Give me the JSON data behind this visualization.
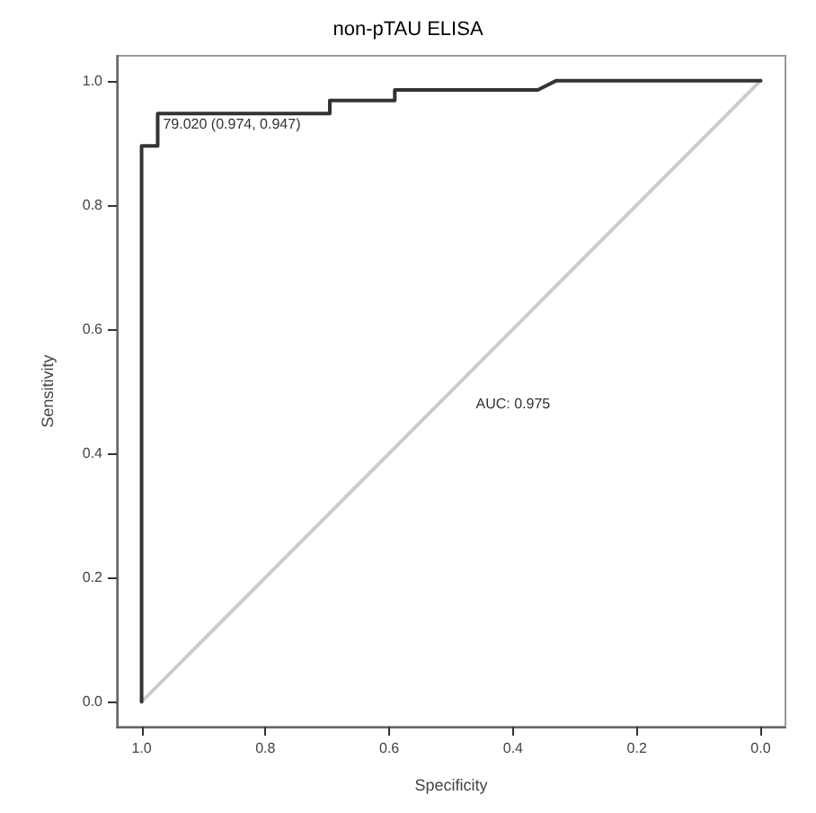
{
  "chart_data": {
    "type": "line",
    "title": "non-pTAU ELISA",
    "xlabel": "Specificity",
    "ylabel": "Sensitivity",
    "xlim": [
      1.04,
      -0.04
    ],
    "ylim": [
      -0.04,
      1.04
    ],
    "xticks": [
      {
        "value": 1,
        "label": "1.0"
      },
      0.8,
      0.6,
      0.4,
      0.2,
      {
        "value": 0,
        "label": "0.0"
      }
    ],
    "yticks": [
      {
        "value": 0,
        "label": "0.0"
      },
      0.2,
      0.4,
      0.6,
      0.8,
      {
        "value": 1,
        "label": "1.0"
      }
    ],
    "grid": false,
    "marker": "none",
    "line_style": "solid",
    "series": [
      {
        "color": "#cccccc",
        "x": [
          1,
          0
        ],
        "values": [
          0,
          1
        ]
      },
      {
        "color": "#333333",
        "x": [
          1,
          1,
          0.974,
          0.974,
          0.696,
          0.696,
          0.591,
          0.591,
          0.36,
          0.33,
          0
        ],
        "values": [
          0,
          0.895,
          0.895,
          0.947,
          0.947,
          0.968,
          0.968,
          0.985,
          0.985,
          1,
          1
        ]
      }
    ],
    "annotations": [
      {
        "text": "79.020 (0.974, 0.947)",
        "x": 0.974,
        "y": 0.947
      },
      "AUC: 0.975"
    ]
  }
}
